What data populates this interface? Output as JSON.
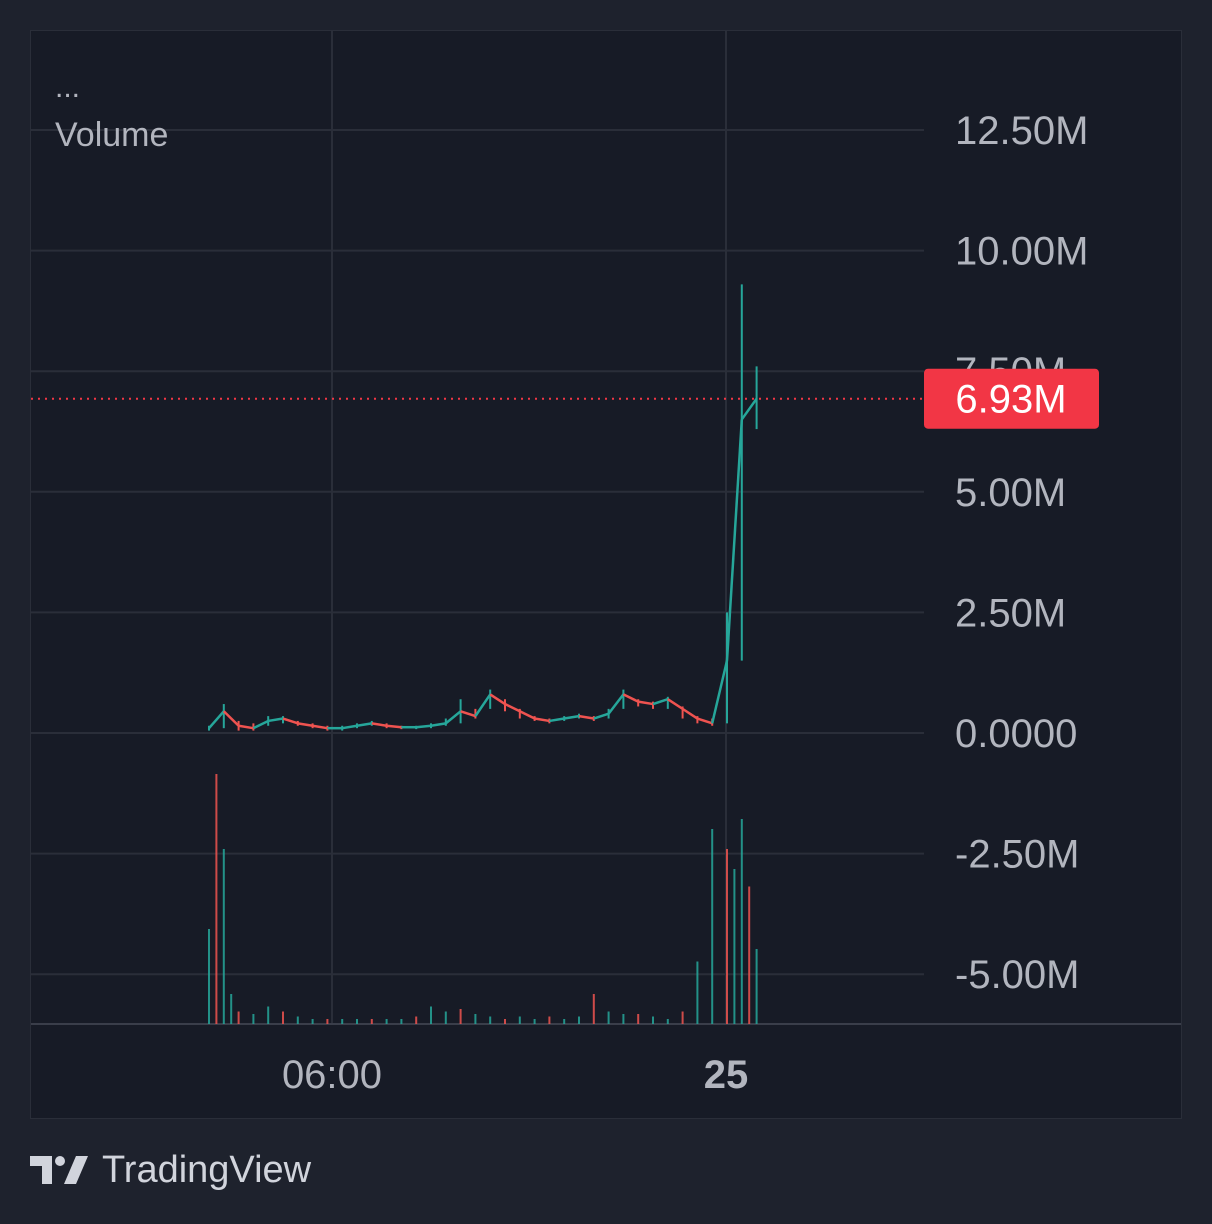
{
  "legend": {
    "more": "...",
    "title": "Volume"
  },
  "price_badge": {
    "label": "6.93M",
    "value": 6930000,
    "color": "#f23645"
  },
  "brand": {
    "name": "TradingView",
    "logo_icon": "tradingview-logo-icon"
  },
  "colors": {
    "up": "#26a69a",
    "down": "#ef5350",
    "background": "#171b26",
    "grid": "#2a2e39",
    "text": "#b2b5be"
  },
  "chart_data": {
    "type": "candlestick-line",
    "title": "Volume",
    "y_ticks": [
      "12.50M",
      "10.00M",
      "7.50M",
      "5.00M",
      "2.50M",
      "0.0000",
      "-2.50M",
      "-5.00M"
    ],
    "y_tick_values": [
      12500000,
      10000000,
      7500000,
      5000000,
      2500000,
      0,
      -2500000,
      -5000000
    ],
    "ylim": [
      -6100000,
      13000000
    ],
    "x_ticks": [
      {
        "label": "06:00",
        "bold": false
      },
      {
        "label": "25",
        "bold": true
      }
    ],
    "grid": true,
    "last_value": 6930000,
    "series": [
      {
        "name": "value",
        "x": [
          0,
          1,
          2,
          3,
          4,
          5,
          6,
          7,
          8,
          9,
          10,
          11,
          12,
          13,
          14,
          15,
          16,
          17,
          18,
          19,
          20,
          21,
          22,
          23,
          24,
          25,
          26,
          27,
          28,
          29,
          30,
          31,
          32,
          33,
          34,
          35,
          36,
          37
        ],
        "values": [
          100000,
          450000,
          150000,
          100000,
          250000,
          300000,
          200000,
          150000,
          100000,
          100000,
          150000,
          200000,
          150000,
          120000,
          120000,
          150000,
          200000,
          450000,
          350000,
          800000,
          600000,
          450000,
          300000,
          250000,
          300000,
          350000,
          300000,
          400000,
          800000,
          650000,
          600000,
          700000,
          500000,
          300000,
          200000,
          1500000,
          6500000,
          6930000
        ],
        "highs": [
          150000,
          600000,
          250000,
          200000,
          350000,
          350000,
          250000,
          200000,
          150000,
          150000,
          200000,
          250000,
          200000,
          150000,
          150000,
          200000,
          300000,
          700000,
          500000,
          900000,
          700000,
          500000,
          350000,
          300000,
          350000,
          400000,
          350000,
          500000,
          900000,
          700000,
          650000,
          750000,
          550000,
          350000,
          300000,
          2500000,
          9300000,
          7600000
        ],
        "lows": [
          50000,
          100000,
          50000,
          50000,
          150000,
          200000,
          150000,
          100000,
          50000,
          50000,
          100000,
          150000,
          100000,
          80000,
          80000,
          100000,
          150000,
          200000,
          300000,
          500000,
          450000,
          300000,
          250000,
          200000,
          250000,
          300000,
          250000,
          300000,
          500000,
          550000,
          500000,
          500000,
          300000,
          200000,
          150000,
          200000,
          1500000,
          6300000
        ]
      }
    ],
    "volume_bars": {
      "x": [
        0,
        0.5,
        1,
        1.5,
        2,
        3,
        4,
        5,
        6,
        7,
        8,
        9,
        10,
        11,
        12,
        13,
        14,
        15,
        16,
        17,
        18,
        19,
        20,
        21,
        22,
        23,
        24,
        25,
        26,
        27,
        28,
        29,
        30,
        31,
        32,
        33,
        34,
        35,
        35.5,
        36,
        36.5,
        37
      ],
      "values": [
        0.38,
        1.0,
        0.7,
        0.12,
        0.05,
        0.04,
        0.07,
        0.05,
        0.03,
        0.02,
        0.02,
        0.02,
        0.02,
        0.02,
        0.02,
        0.02,
        0.03,
        0.07,
        0.05,
        0.06,
        0.04,
        0.03,
        0.02,
        0.03,
        0.02,
        0.03,
        0.02,
        0.03,
        0.12,
        0.05,
        0.04,
        0.04,
        0.03,
        0.02,
        0.05,
        0.25,
        0.78,
        0.7,
        0.62,
        0.82,
        0.55,
        0.3
      ]
    }
  }
}
